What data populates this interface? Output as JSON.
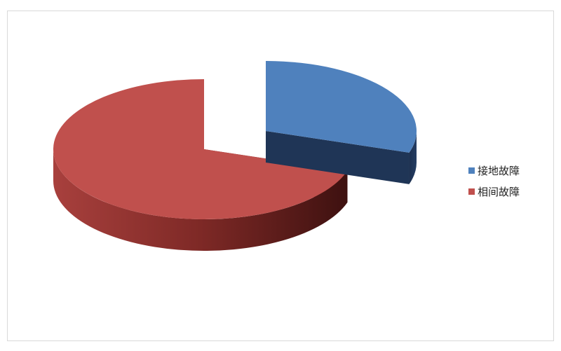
{
  "chart_data": {
    "type": "pie",
    "style": "3d-exploded",
    "title": "",
    "legend_position": "right",
    "series": [
      {
        "name": "接地故障",
        "value": 30,
        "color": "#4f81bd",
        "side_color": "#1f3556"
      },
      {
        "name": "相间故障",
        "value": 70,
        "color": "#c0504d",
        "side_color": "#6a201e"
      }
    ]
  }
}
